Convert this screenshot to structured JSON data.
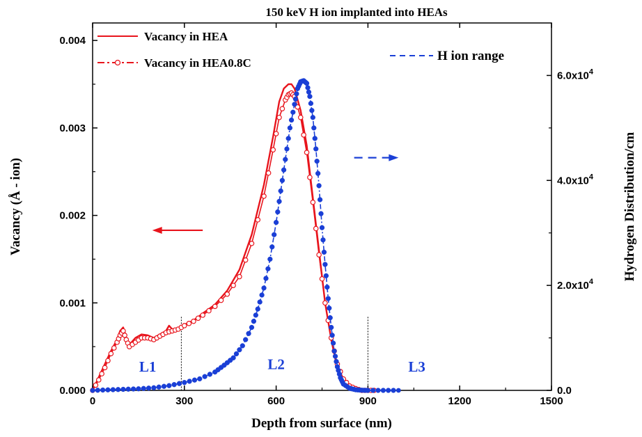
{
  "chart_data": {
    "type": "line",
    "title": "150 keV H ion implanted into HEAs",
    "xlabel": "Depth from surface (nm)",
    "ylabel_left": "Vacancy (Å - ion)",
    "ylabel_right": "Hydrogen Distribution/cm",
    "xlim": [
      0,
      1500
    ],
    "ylim_left": [
      0,
      0.0042
    ],
    "ylim_right": [
      0,
      70000
    ],
    "x_ticks": [
      "0",
      "300",
      "600",
      "900",
      "1200",
      "1500"
    ],
    "y_left_ticks": [
      "0.000",
      "0.001",
      "0.002",
      "0.003",
      "0.004"
    ],
    "y_right_ticks": [
      "0.0",
      "2.0x10",
      "4.0x10",
      "6.0x10"
    ],
    "y_right_tick_exponent": "4",
    "series": [
      {
        "name": "Vacancy in HEA",
        "axis": "left",
        "style": "line",
        "color": "#e8141c",
        "x": [
          0,
          20,
          40,
          60,
          80,
          90,
          100,
          110,
          120,
          140,
          160,
          180,
          200,
          220,
          240,
          250,
          260,
          280,
          300,
          330,
          360,
          400,
          440,
          480,
          520,
          560,
          590,
          610,
          625,
          640,
          650,
          660,
          680,
          700,
          720,
          740,
          760,
          780,
          800,
          820,
          840,
          860,
          880,
          900,
          920
        ],
        "y": [
          0.0,
          0.00015,
          0.0003,
          0.00045,
          0.00058,
          0.00068,
          0.00072,
          0.0006,
          0.00052,
          0.0006,
          0.00064,
          0.00063,
          0.0006,
          0.00064,
          0.00068,
          0.00074,
          0.0007,
          0.00071,
          0.00075,
          0.0008,
          0.00088,
          0.00098,
          0.00114,
          0.00138,
          0.00178,
          0.00235,
          0.0029,
          0.0033,
          0.00345,
          0.0035,
          0.0035,
          0.00345,
          0.0032,
          0.0028,
          0.0022,
          0.0016,
          0.001,
          0.00058,
          0.00025,
          0.0001,
          3e-05,
          1e-05,
          0.0,
          0.0,
          0.0
        ]
      },
      {
        "name": "Vacancy in HEA0.8C",
        "axis": "left",
        "style": "line-open-circle",
        "color": "#e8141c",
        "x": [
          0,
          20,
          40,
          60,
          80,
          90,
          100,
          110,
          120,
          140,
          160,
          180,
          200,
          220,
          240,
          260,
          280,
          300,
          330,
          360,
          400,
          440,
          480,
          520,
          560,
          590,
          610,
          630,
          640,
          650,
          660,
          680,
          700,
          720,
          740,
          760,
          780,
          800,
          820,
          840,
          860,
          880,
          900,
          920
        ],
        "y": [
          0.0,
          0.00012,
          0.00026,
          0.00042,
          0.00055,
          0.00063,
          0.00068,
          0.00058,
          0.0005,
          0.00055,
          0.0006,
          0.0006,
          0.00058,
          0.00062,
          0.00066,
          0.00068,
          0.0007,
          0.00074,
          0.00079,
          0.00086,
          0.00096,
          0.0011,
          0.0013,
          0.00168,
          0.00222,
          0.00275,
          0.00312,
          0.00332,
          0.00338,
          0.0034,
          0.00336,
          0.00312,
          0.00272,
          0.00215,
          0.00155,
          0.001,
          0.0006,
          0.0003,
          0.00013,
          5e-05,
          2e-05,
          0.0,
          0.0,
          0.0
        ]
      },
      {
        "name": "H ion range",
        "axis": "right",
        "style": "dash-dot-filled-circle",
        "color": "#1a3fd6",
        "x": [
          0,
          50,
          100,
          150,
          200,
          250,
          300,
          350,
          400,
          430,
          460,
          490,
          520,
          540,
          560,
          580,
          600,
          615,
          630,
          645,
          660,
          670,
          680,
          690,
          700,
          710,
          720,
          730,
          740,
          750,
          760,
          770,
          780,
          790,
          800,
          810,
          820,
          840,
          860,
          880,
          900,
          950,
          1000
        ],
        "y": [
          0,
          100,
          200,
          300,
          500,
          900,
          1500,
          2200,
          3500,
          4800,
          6200,
          8500,
          12000,
          15500,
          19500,
          25000,
          32000,
          38000,
          44000,
          50000,
          54500,
          57500,
          58800,
          59000,
          58500,
          56000,
          52000,
          46000,
          39000,
          31000,
          24000,
          17500,
          12000,
          7500,
          4500,
          2400,
          1200,
          400,
          120,
          30,
          0,
          0,
          0
        ]
      }
    ],
    "legend": [
      "Vacancy in HEA",
      "Vacancy in HEA0.8C",
      "H ion range"
    ],
    "regions": [
      {
        "label": "L1",
        "x": 180,
        "y_left": 0.00027
      },
      {
        "label": "L2",
        "x": 600,
        "y_left": 0.0003
      },
      {
        "label": "L3",
        "x": 1060,
        "y_left": 0.00027
      }
    ],
    "boundaries": [
      290,
      900
    ],
    "boundary_top_left": 0.00084,
    "annotations": [
      {
        "direction": "left",
        "color": "#e8141c",
        "x_from": 360,
        "x_to": 195,
        "y_left": 0.00183
      },
      {
        "direction": "right",
        "color": "#1a3fd6",
        "x_from": 855,
        "x_to": 1000,
        "y_left": 0.00266
      }
    ],
    "grid": false
  }
}
